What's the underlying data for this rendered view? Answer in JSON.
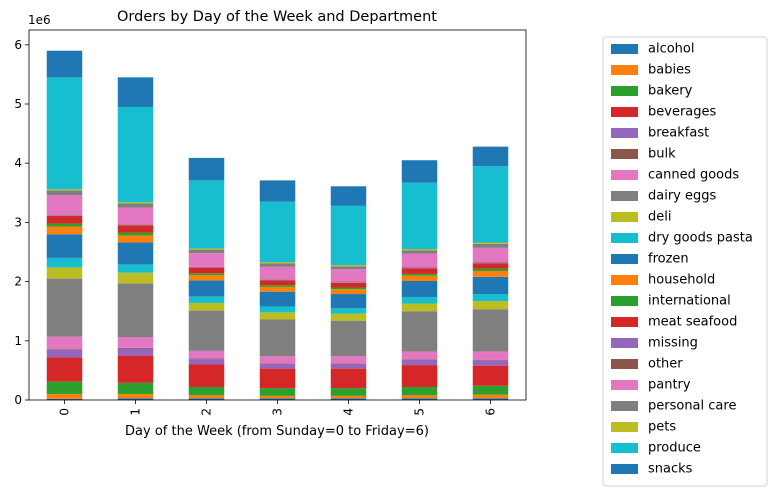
{
  "chart_data": {
    "type": "bar",
    "stacked": true,
    "title": "Orders by Day of the Week and Department",
    "xlabel": "Day of the Week (from Sunday=0 to Friday=6)",
    "ylabel": "",
    "offset_text": "1e6",
    "ylim": [
      0,
      6.25
    ],
    "yticks": [
      0,
      1,
      2,
      3,
      4,
      5,
      6
    ],
    "categories": [
      "0",
      "1",
      "2",
      "3",
      "4",
      "5",
      "6"
    ],
    "legend_position": "outside right",
    "series": [
      {
        "name": "alcohol",
        "color": "#1f77b4",
        "values": [
          0.02,
          0.03,
          0.03,
          0.03,
          0.03,
          0.03,
          0.03
        ]
      },
      {
        "name": "babies",
        "color": "#ff7f0e",
        "values": [
          0.08,
          0.07,
          0.05,
          0.04,
          0.04,
          0.05,
          0.06
        ]
      },
      {
        "name": "bakery",
        "color": "#2ca02c",
        "values": [
          0.21,
          0.19,
          0.14,
          0.13,
          0.13,
          0.14,
          0.15
        ]
      },
      {
        "name": "beverages",
        "color": "#d62728",
        "values": [
          0.41,
          0.46,
          0.38,
          0.33,
          0.33,
          0.37,
          0.34
        ]
      },
      {
        "name": "breakfast",
        "color": "#9467bd",
        "values": [
          0.13,
          0.12,
          0.09,
          0.08,
          0.08,
          0.09,
          0.09
        ]
      },
      {
        "name": "bulk",
        "color": "#8c564b",
        "values": [
          0.01,
          0.01,
          0.01,
          0.01,
          0.01,
          0.01,
          0.01
        ]
      },
      {
        "name": "canned goods",
        "color": "#e377c2",
        "values": [
          0.21,
          0.18,
          0.13,
          0.12,
          0.12,
          0.13,
          0.14
        ]
      },
      {
        "name": "dairy eggs",
        "color": "#7f7f7f",
        "values": [
          0.98,
          0.91,
          0.68,
          0.62,
          0.6,
          0.68,
          0.71
        ]
      },
      {
        "name": "deli",
        "color": "#bcbd22",
        "values": [
          0.19,
          0.18,
          0.13,
          0.12,
          0.12,
          0.13,
          0.14
        ]
      },
      {
        "name": "dry goods pasta",
        "color": "#17becf",
        "values": [
          0.16,
          0.14,
          0.11,
          0.1,
          0.09,
          0.11,
          0.12
        ]
      },
      {
        "name": "frozen",
        "color": "#1f77b4",
        "values": [
          0.4,
          0.37,
          0.27,
          0.25,
          0.24,
          0.27,
          0.29
        ]
      },
      {
        "name": "household",
        "color": "#ff7f0e",
        "values": [
          0.13,
          0.12,
          0.09,
          0.08,
          0.08,
          0.09,
          0.1
        ]
      },
      {
        "name": "international",
        "color": "#2ca02c",
        "values": [
          0.05,
          0.05,
          0.03,
          0.03,
          0.03,
          0.03,
          0.04
        ]
      },
      {
        "name": "meat seafood",
        "color": "#d62728",
        "values": [
          0.13,
          0.12,
          0.09,
          0.08,
          0.08,
          0.09,
          0.09
        ]
      },
      {
        "name": "missing",
        "color": "#9467bd",
        "values": [
          0.01,
          0.01,
          0.01,
          0.01,
          0.01,
          0.01,
          0.01
        ]
      },
      {
        "name": "other",
        "color": "#8c564b",
        "values": [
          0.01,
          0.01,
          0.01,
          0.01,
          0.01,
          0.01,
          0.01
        ]
      },
      {
        "name": "pantry",
        "color": "#e377c2",
        "values": [
          0.33,
          0.28,
          0.23,
          0.21,
          0.21,
          0.23,
          0.24
        ]
      },
      {
        "name": "personal care",
        "color": "#7f7f7f",
        "values": [
          0.08,
          0.07,
          0.06,
          0.06,
          0.05,
          0.06,
          0.07
        ]
      },
      {
        "name": "pets",
        "color": "#bcbd22",
        "values": [
          0.02,
          0.02,
          0.02,
          0.02,
          0.02,
          0.02,
          0.02
        ]
      },
      {
        "name": "produce",
        "color": "#17becf",
        "values": [
          1.89,
          1.61,
          1.15,
          1.02,
          1.0,
          1.12,
          1.29
        ]
      },
      {
        "name": "snacks",
        "color": "#1f77b4",
        "values": [
          0.45,
          0.5,
          0.38,
          0.36,
          0.33,
          0.38,
          0.33
        ]
      }
    ]
  }
}
